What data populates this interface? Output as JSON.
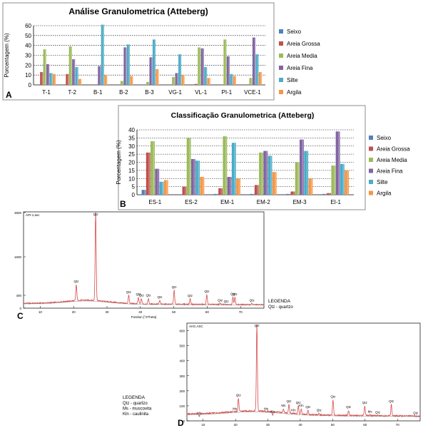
{
  "chart_data": [
    {
      "type": "bar",
      "panel_label": "A",
      "title": "Análise Granulometrica (Atteberg)",
      "ylabel": "Porcentagem (%)",
      "ylim": [
        0,
        60
      ],
      "yticks": [
        0,
        10,
        20,
        30,
        40,
        50,
        60
      ],
      "categories": [
        "T-1",
        "T-2",
        "B-1",
        "B-2",
        "B-3",
        "VG-1",
        "VL-1",
        "PI-1",
        "VCE-1"
      ],
      "legend_position": "right",
      "series": [
        {
          "name": "Seixo",
          "color": "#4f81bd",
          "values": [
            0,
            0,
            0,
            0,
            0,
            0,
            0,
            0,
            0
          ]
        },
        {
          "name": "Areia Grossa",
          "color": "#c0504d",
          "values": [
            13,
            11,
            0,
            0,
            0,
            0,
            1,
            0,
            0
          ]
        },
        {
          "name": "Areia Media",
          "color": "#9bbb59",
          "values": [
            36,
            39,
            0,
            4,
            3,
            8,
            38,
            46,
            7
          ]
        },
        {
          "name": "Areia Fina",
          "color": "#8064a2",
          "values": [
            21,
            26,
            19,
            38,
            28,
            12,
            37,
            29,
            48
          ]
        },
        {
          "name": "Silte",
          "color": "#4bacc6",
          "values": [
            12,
            18,
            61,
            41,
            46,
            31,
            18,
            11,
            31
          ]
        },
        {
          "name": "Argila",
          "color": "#f79646",
          "values": [
            11,
            6,
            10,
            9,
            16,
            10,
            7,
            9,
            13
          ]
        }
      ]
    },
    {
      "type": "bar",
      "panel_label": "B",
      "title": "Classificação Granulometrica (Atteberg)",
      "ylabel": "Porcentagem (%)",
      "ylim": [
        0,
        40
      ],
      "yticks": [
        0,
        5,
        10,
        15,
        20,
        25,
        30,
        35,
        40
      ],
      "categories": [
        "ES-1",
        "ES-2",
        "EM-1",
        "EM-2",
        "EM-3",
        "EI-1"
      ],
      "legend_position": "right",
      "series": [
        {
          "name": "Seixo",
          "color": "#4f81bd",
          "values": [
            3,
            0,
            0.5,
            0.5,
            0.5,
            0.5
          ]
        },
        {
          "name": "Areia Grossa",
          "color": "#c0504d",
          "values": [
            26,
            5,
            4,
            6,
            2,
            1
          ]
        },
        {
          "name": "Areia Media",
          "color": "#9bbb59",
          "values": [
            33,
            35,
            36,
            26,
            20,
            18
          ]
        },
        {
          "name": "Areia Fina",
          "color": "#8064a2",
          "values": [
            16,
            22,
            11,
            27,
            34,
            39
          ]
        },
        {
          "name": "Silte",
          "color": "#4bacc6",
          "values": [
            8,
            21,
            32,
            24,
            27,
            19
          ]
        },
        {
          "name": "Argila",
          "color": "#f79646",
          "values": [
            9,
            11,
            10,
            14,
            10,
            15
          ]
        }
      ]
    },
    {
      "type": "line",
      "panel_label": "C",
      "file_label": "API-1.asc",
      "xlabel": "Position [°2Theta]",
      "xlim": [
        5,
        77
      ],
      "xticks": [
        10,
        20,
        30,
        40,
        50,
        60,
        70
      ],
      "ylim": [
        0,
        3000
      ],
      "yticks": [
        0,
        400,
        1600,
        3600
      ],
      "peaks": [
        {
          "x": 20.8,
          "y": 730,
          "label": "Qtz"
        },
        {
          "x": 26.6,
          "y": 3000,
          "label": "Qtz"
        },
        {
          "x": 36.5,
          "y": 400,
          "label": "Qtz"
        },
        {
          "x": 39.4,
          "y": 330,
          "label": "Qtz"
        },
        {
          "x": 40.3,
          "y": 300,
          "label": "Qtz"
        },
        {
          "x": 42.4,
          "y": 300,
          "label": "Qtz"
        },
        {
          "x": 45.8,
          "y": 240,
          "label": "Qtz"
        },
        {
          "x": 50.1,
          "y": 560,
          "label": "Qtz"
        },
        {
          "x": 54.9,
          "y": 290,
          "label": "Qtz"
        },
        {
          "x": 59.9,
          "y": 420,
          "label": "Qtz"
        },
        {
          "x": 63.9,
          "y": 150,
          "label": "Qtz"
        },
        {
          "x": 65.7,
          "y": 110,
          "label": "Qtz"
        },
        {
          "x": 67.7,
          "y": 350,
          "label": "Qtz"
        },
        {
          "x": 68.3,
          "y": 330,
          "label": "Qtz"
        },
        {
          "x": 73.4,
          "y": 150,
          "label": "Qtz"
        }
      ],
      "legend_title": "LEGENDA",
      "legend_items": [
        "Qtz - quartzo"
      ]
    },
    {
      "type": "line",
      "panel_label": "D",
      "file_label": "AVG.ASC",
      "xlabel": "Position [°2Theta]",
      "xlim": [
        5,
        77
      ],
      "xticks": [
        10,
        20,
        30,
        40,
        50,
        60,
        70
      ],
      "ylim": [
        0,
        650
      ],
      "yticks": [
        0,
        100,
        200,
        300,
        400,
        500,
        600
      ],
      "peaks": [
        {
          "x": 8.8,
          "y": 30,
          "label": "Ms"
        },
        {
          "x": 19.8,
          "y": 60,
          "label": "Ms"
        },
        {
          "x": 20.9,
          "y": 150,
          "label": "Qtz"
        },
        {
          "x": 26.6,
          "y": 640,
          "label": "Qtz"
        },
        {
          "x": 29.5,
          "y": 60,
          "label": "Ms"
        },
        {
          "x": 31.5,
          "y": 40,
          "label": "Ms"
        },
        {
          "x": 34.8,
          "y": 80,
          "label": "Ms"
        },
        {
          "x": 36.5,
          "y": 110,
          "label": "Qtz"
        },
        {
          "x": 37.9,
          "y": 50,
          "label": "Kln"
        },
        {
          "x": 39.4,
          "y": 100,
          "label": "Qtz"
        },
        {
          "x": 40.3,
          "y": 80,
          "label": "Kln"
        },
        {
          "x": 42.4,
          "y": 70,
          "label": "Qtz"
        },
        {
          "x": 45.8,
          "y": 50,
          "label": "Qtz"
        },
        {
          "x": 50.1,
          "y": 140,
          "label": "Qtz"
        },
        {
          "x": 54.9,
          "y": 70,
          "label": "Qtz"
        },
        {
          "x": 59.9,
          "y": 100,
          "label": "Qtz"
        },
        {
          "x": 61.5,
          "y": 40,
          "label": "Ms"
        },
        {
          "x": 63.9,
          "y": 35,
          "label": "Qtz"
        },
        {
          "x": 68.1,
          "y": 110,
          "label": "Qtz"
        },
        {
          "x": 75.6,
          "y": 30,
          "label": "Qtz"
        }
      ],
      "legend_title": "LEGENDA",
      "legend_items": [
        "Qtz - quartzo",
        "Ms - muscovita",
        "Kln - caulinita"
      ]
    }
  ]
}
